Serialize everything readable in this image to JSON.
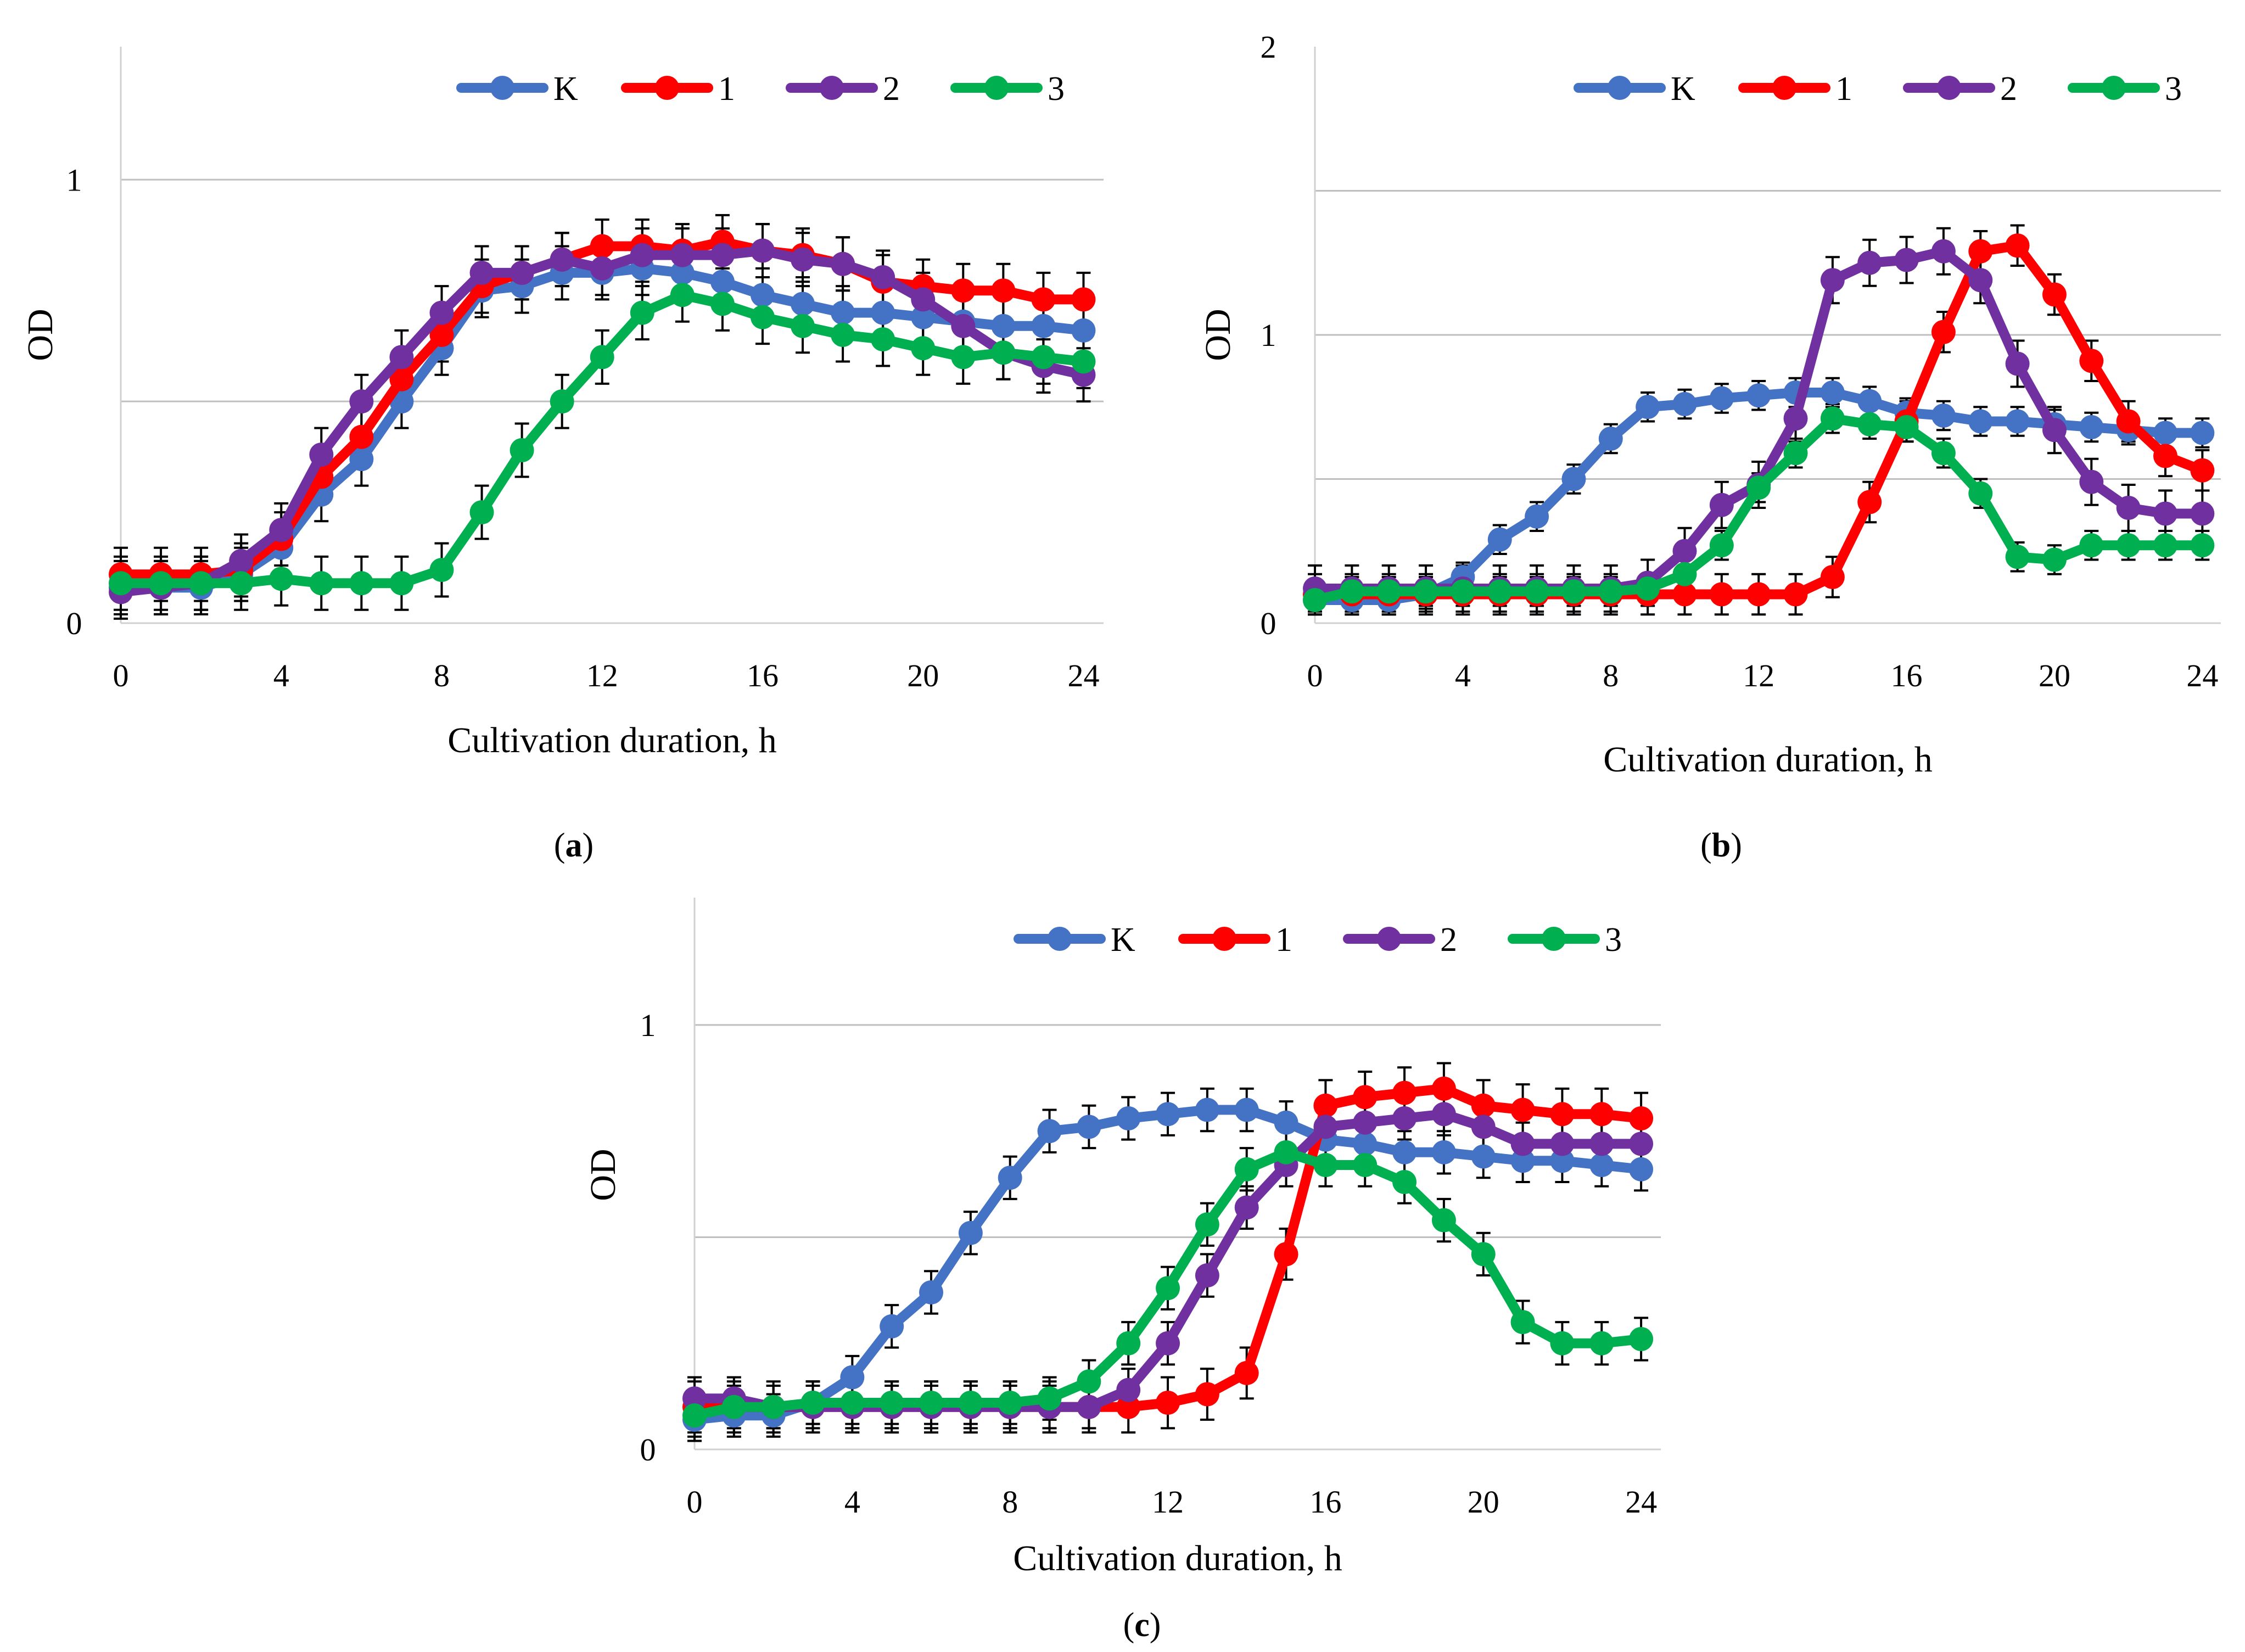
{
  "figure": {
    "domain": "scientific growth curves"
  },
  "chart_data": [
    {
      "id": "a",
      "type": "line",
      "caption_letter": "a",
      "xlabel": "Cultivation duration, h",
      "ylabel": "OD",
      "xlim": [
        0,
        24.5
      ],
      "ylim": [
        0,
        1.3
      ],
      "x_ticks": [
        0,
        4,
        8,
        12,
        16,
        20,
        24
      ],
      "y_tick_labels": [
        {
          "value": 0,
          "label": "0"
        },
        {
          "value": 1,
          "label": "1"
        }
      ],
      "gridlines": [
        0.5,
        1.0
      ],
      "legend_position": "top-right",
      "x": [
        0,
        1,
        2,
        3,
        4,
        5,
        6,
        7,
        8,
        9,
        10,
        11,
        12,
        13,
        14,
        15,
        16,
        17,
        18,
        19,
        20,
        21,
        22,
        23,
        24
      ],
      "series": [
        {
          "name": "K",
          "color": "#4472C4",
          "error": 0.06,
          "values": [
            0.08,
            0.08,
            0.08,
            0.11,
            0.17,
            0.29,
            0.37,
            0.5,
            0.62,
            0.75,
            0.76,
            0.79,
            0.79,
            0.8,
            0.79,
            0.77,
            0.74,
            0.72,
            0.7,
            0.7,
            0.69,
            0.68,
            0.67,
            0.67,
            0.66
          ]
        },
        {
          "name": "1",
          "color": "#FF0000",
          "error": 0.06,
          "values": [
            0.11,
            0.11,
            0.11,
            0.12,
            0.19,
            0.33,
            0.42,
            0.55,
            0.65,
            0.76,
            0.79,
            0.82,
            0.85,
            0.85,
            0.84,
            0.86,
            0.84,
            0.83,
            0.81,
            0.77,
            0.76,
            0.75,
            0.75,
            0.73,
            0.73
          ]
        },
        {
          "name": "2",
          "color": "#7030A0",
          "error": 0.06,
          "values": [
            0.07,
            0.08,
            0.09,
            0.14,
            0.21,
            0.38,
            0.5,
            0.6,
            0.7,
            0.79,
            0.79,
            0.82,
            0.8,
            0.83,
            0.83,
            0.83,
            0.84,
            0.82,
            0.81,
            0.78,
            0.73,
            0.67,
            0.61,
            0.58,
            0.56
          ]
        },
        {
          "name": "3",
          "color": "#00B050",
          "error": 0.06,
          "values": [
            0.09,
            0.09,
            0.09,
            0.09,
            0.1,
            0.09,
            0.09,
            0.09,
            0.12,
            0.25,
            0.39,
            0.5,
            0.6,
            0.7,
            0.74,
            0.72,
            0.69,
            0.67,
            0.65,
            0.64,
            0.62,
            0.6,
            0.61,
            0.6,
            0.59
          ]
        }
      ]
    },
    {
      "id": "b",
      "type": "line",
      "caption_letter": "b",
      "xlabel": "Cultivation duration, h",
      "ylabel": "OD",
      "xlim": [
        0,
        24.5
      ],
      "ylim": [
        0,
        2
      ],
      "x_ticks": [
        0,
        4,
        8,
        12,
        16,
        20,
        24
      ],
      "y_tick_labels": [
        {
          "value": 0,
          "label": "0"
        },
        {
          "value": 1,
          "label": "1"
        },
        {
          "value": 2,
          "label": "2"
        }
      ],
      "gridlines": [
        0.5,
        1.0,
        1.5
      ],
      "legend_position": "top-right",
      "x": [
        0,
        1,
        2,
        3,
        4,
        5,
        6,
        7,
        8,
        9,
        10,
        11,
        12,
        13,
        14,
        15,
        16,
        17,
        18,
        19,
        20,
        21,
        22,
        23,
        24
      ],
      "series": [
        {
          "name": "K",
          "color": "#4472C4",
          "error": 0.05,
          "values": [
            0.08,
            0.08,
            0.08,
            0.1,
            0.16,
            0.29,
            0.37,
            0.5,
            0.64,
            0.75,
            0.76,
            0.78,
            0.79,
            0.8,
            0.8,
            0.77,
            0.73,
            0.72,
            0.7,
            0.7,
            0.69,
            0.68,
            0.67,
            0.66,
            0.66
          ]
        },
        {
          "name": "1",
          "color": "#FF0000",
          "error": 0.07,
          "values": [
            0.1,
            0.1,
            0.1,
            0.1,
            0.1,
            0.1,
            0.1,
            0.1,
            0.1,
            0.1,
            0.1,
            0.1,
            0.1,
            0.1,
            0.16,
            0.42,
            0.7,
            1.01,
            1.29,
            1.31,
            1.14,
            0.91,
            0.7,
            0.58,
            0.53
          ]
        },
        {
          "name": "2",
          "color": "#7030A0",
          "error": 0.08,
          "values": [
            0.12,
            0.12,
            0.12,
            0.12,
            0.12,
            0.12,
            0.12,
            0.12,
            0.12,
            0.14,
            0.25,
            0.41,
            0.48,
            0.71,
            1.19,
            1.25,
            1.26,
            1.29,
            1.19,
            0.9,
            0.67,
            0.49,
            0.4,
            0.38,
            0.38
          ]
        },
        {
          "name": "3",
          "color": "#00B050",
          "error": 0.05,
          "values": [
            0.08,
            0.11,
            0.11,
            0.11,
            0.11,
            0.11,
            0.11,
            0.11,
            0.11,
            0.12,
            0.17,
            0.27,
            0.47,
            0.59,
            0.71,
            0.69,
            0.68,
            0.59,
            0.45,
            0.23,
            0.22,
            0.27,
            0.27,
            0.27,
            0.27
          ]
        }
      ]
    },
    {
      "id": "c",
      "type": "line",
      "caption_letter": "c",
      "xlabel": "Cultivation duration, h",
      "ylabel": "OD",
      "xlim": [
        0,
        24.5
      ],
      "ylim": [
        0,
        1.3
      ],
      "x_ticks": [
        0,
        4,
        8,
        12,
        16,
        20,
        24
      ],
      "y_tick_labels": [
        {
          "value": 0,
          "label": "0"
        },
        {
          "value": 1,
          "label": "1"
        }
      ],
      "gridlines": [
        0.5,
        1.0
      ],
      "legend_position": "top-right",
      "x": [
        0,
        1,
        2,
        3,
        4,
        5,
        6,
        7,
        8,
        9,
        10,
        11,
        12,
        13,
        14,
        15,
        16,
        17,
        18,
        19,
        20,
        21,
        22,
        23,
        24
      ],
      "series": [
        {
          "name": "K",
          "color": "#4472C4",
          "error": 0.05,
          "values": [
            0.07,
            0.08,
            0.08,
            0.11,
            0.17,
            0.29,
            0.37,
            0.51,
            0.64,
            0.75,
            0.76,
            0.78,
            0.79,
            0.8,
            0.8,
            0.77,
            0.73,
            0.72,
            0.7,
            0.7,
            0.69,
            0.68,
            0.68,
            0.67,
            0.66
          ]
        },
        {
          "name": "1",
          "color": "#FF0000",
          "error": 0.06,
          "values": [
            0.1,
            0.1,
            0.1,
            0.1,
            0.1,
            0.1,
            0.1,
            0.1,
            0.1,
            0.1,
            0.1,
            0.1,
            0.11,
            0.13,
            0.18,
            0.46,
            0.81,
            0.83,
            0.84,
            0.85,
            0.81,
            0.8,
            0.79,
            0.79,
            0.78
          ]
        },
        {
          "name": "2",
          "color": "#7030A0",
          "error": 0.05,
          "values": [
            0.12,
            0.12,
            0.1,
            0.1,
            0.1,
            0.1,
            0.1,
            0.1,
            0.1,
            0.1,
            0.1,
            0.14,
            0.25,
            0.41,
            0.57,
            0.67,
            0.76,
            0.77,
            0.78,
            0.79,
            0.76,
            0.72,
            0.72,
            0.72,
            0.72
          ]
        },
        {
          "name": "3",
          "color": "#00B050",
          "error": 0.05,
          "values": [
            0.08,
            0.1,
            0.1,
            0.11,
            0.11,
            0.11,
            0.11,
            0.11,
            0.11,
            0.12,
            0.16,
            0.25,
            0.38,
            0.53,
            0.66,
            0.7,
            0.67,
            0.67,
            0.63,
            0.54,
            0.46,
            0.3,
            0.25,
            0.25,
            0.26
          ]
        }
      ]
    }
  ]
}
